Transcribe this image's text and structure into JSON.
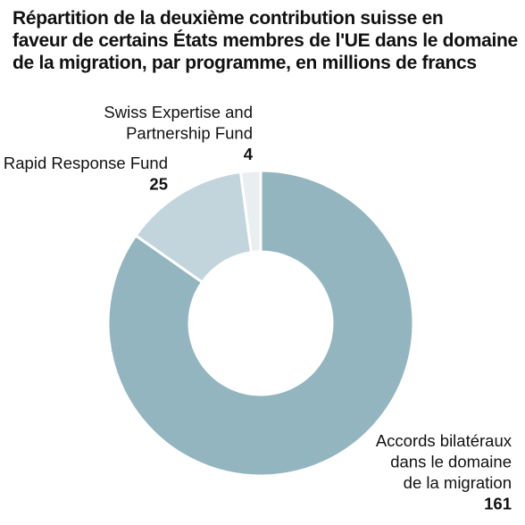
{
  "title_lines": [
    "Répartition de la deuxième contribution suisse en",
    "faveur de certains États membres de l'UE dans le domaine",
    "de la migration, par programme, en millions de francs"
  ],
  "chart_data": {
    "type": "pie",
    "donut": true,
    "title": "Répartition de la deuxième contribution suisse en faveur de certains États membres de l'UE dans le domaine de la migration, par programme, en millions de francs",
    "unit": "millions de francs",
    "slices": [
      {
        "label_lines": [
          "Accords bilatéraux",
          "dans le domaine",
          "de la migration"
        ],
        "value": 161,
        "color": "#93b5c0"
      },
      {
        "label_lines": [
          "Rapid Response Fund"
        ],
        "value": 25,
        "color": "#c3d5dc"
      },
      {
        "label_lines": [
          "Swiss Expertise and",
          "Partnership Fund"
        ],
        "value": 4,
        "color": "#e9eef1"
      }
    ],
    "start_angle_deg": 0,
    "direction": "clockwise",
    "legend": "none"
  }
}
